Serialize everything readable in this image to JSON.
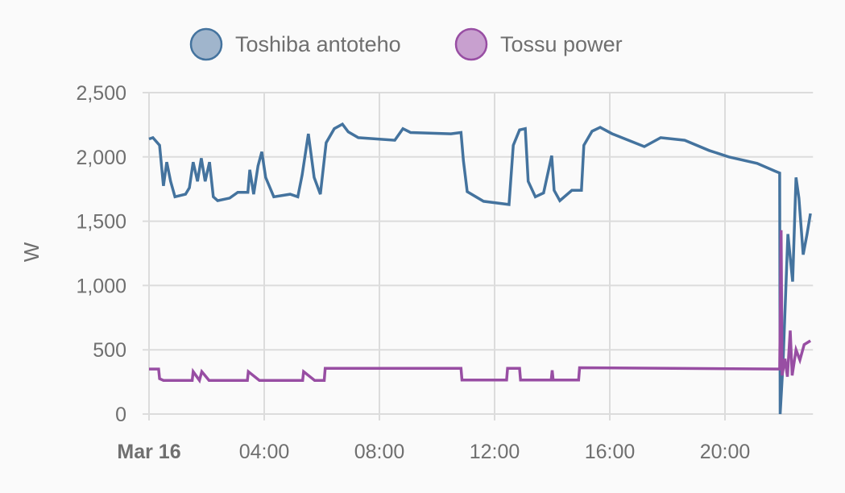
{
  "chart_data": {
    "type": "line",
    "title": "",
    "xlabel": "",
    "ylabel": "W",
    "ylim": [
      0,
      2500
    ],
    "xlim": [
      "00:00",
      "23:00"
    ],
    "grid": true,
    "legend_position": "top",
    "y_ticks": [
      "0",
      "500",
      "1,000",
      "1,500",
      "2,000",
      "2,500"
    ],
    "y_tick_values": [
      0,
      500,
      1000,
      1500,
      2000,
      2500
    ],
    "x_ticks": [
      {
        "label": "Mar 16",
        "time": "00:00",
        "bold": true
      },
      {
        "label": "04:00",
        "time": "04:00"
      },
      {
        "label": "08:00",
        "time": "08:00"
      },
      {
        "label": "12:00",
        "time": "12:00"
      },
      {
        "label": "16:00",
        "time": "16:00"
      },
      {
        "label": "20:00",
        "time": "20:00"
      }
    ],
    "series": [
      {
        "name": "Toshiba antoteho",
        "color": "#44739e",
        "fill": "#a0b5cc",
        "points": [
          [
            "00:00",
            2140
          ],
          [
            "00:08",
            2150
          ],
          [
            "00:22",
            2090
          ],
          [
            "00:30",
            1775
          ],
          [
            "00:37",
            1960
          ],
          [
            "00:45",
            1810
          ],
          [
            "00:54",
            1690
          ],
          [
            "01:16",
            1710
          ],
          [
            "01:24",
            1760
          ],
          [
            "01:32",
            1960
          ],
          [
            "01:41",
            1810
          ],
          [
            "01:49",
            1990
          ],
          [
            "01:57",
            1810
          ],
          [
            "02:06",
            1960
          ],
          [
            "02:14",
            1690
          ],
          [
            "02:23",
            1660
          ],
          [
            "02:48",
            1680
          ],
          [
            "03:05",
            1725
          ],
          [
            "03:26",
            1725
          ],
          [
            "03:30",
            1900
          ],
          [
            "03:38",
            1710
          ],
          [
            "03:47",
            1930
          ],
          [
            "03:55",
            2040
          ],
          [
            "04:03",
            1840
          ],
          [
            "04:20",
            1690
          ],
          [
            "04:54",
            1710
          ],
          [
            "05:10",
            1690
          ],
          [
            "05:19",
            1860
          ],
          [
            "05:32",
            2180
          ],
          [
            "05:44",
            1840
          ],
          [
            "05:57",
            1710
          ],
          [
            "06:09",
            2110
          ],
          [
            "06:26",
            2220
          ],
          [
            "06:43",
            2255
          ],
          [
            "06:55",
            2195
          ],
          [
            "07:16",
            2150
          ],
          [
            "08:32",
            2130
          ],
          [
            "08:49",
            2220
          ],
          [
            "09:05",
            2190
          ],
          [
            "10:29",
            2180
          ],
          [
            "10:50",
            2190
          ],
          [
            "10:55",
            1970
          ],
          [
            "11:03",
            1730
          ],
          [
            "11:37",
            1655
          ],
          [
            "12:30",
            1630
          ],
          [
            "12:39",
            2090
          ],
          [
            "12:52",
            2210
          ],
          [
            "13:04",
            2220
          ],
          [
            "13:10",
            1810
          ],
          [
            "13:25",
            1690
          ],
          [
            "13:42",
            1720
          ],
          [
            "13:59",
            2010
          ],
          [
            "14:04",
            1740
          ],
          [
            "14:16",
            1660
          ],
          [
            "14:41",
            1740
          ],
          [
            "15:01",
            1740
          ],
          [
            "15:06",
            2090
          ],
          [
            "15:23",
            2200
          ],
          [
            "15:40",
            2230
          ],
          [
            "16:05",
            2180
          ],
          [
            "16:39",
            2130
          ],
          [
            "17:12",
            2080
          ],
          [
            "17:46",
            2150
          ],
          [
            "18:36",
            2130
          ],
          [
            "19:27",
            2050
          ],
          [
            "20:08",
            2000
          ],
          [
            "21:07",
            1950
          ],
          [
            "21:44",
            1890
          ],
          [
            "21:54",
            1875
          ],
          [
            "21:55",
            0
          ],
          [
            "22:01",
            400
          ],
          [
            "22:11",
            1400
          ],
          [
            "22:21",
            1030
          ],
          [
            "22:28",
            1840
          ],
          [
            "22:34",
            1680
          ],
          [
            "22:43",
            1240
          ],
          [
            "22:51",
            1400
          ],
          [
            "22:58",
            1560
          ]
        ]
      },
      {
        "name": "Tossu power",
        "color": "#984ea3",
        "fill": "#c8a0cf",
        "points": [
          [
            "00:00",
            350
          ],
          [
            "00:20",
            350
          ],
          [
            "00:22",
            275
          ],
          [
            "00:30",
            262
          ],
          [
            "01:30",
            262
          ],
          [
            "01:32",
            330
          ],
          [
            "01:45",
            262
          ],
          [
            "01:50",
            330
          ],
          [
            "02:05",
            262
          ],
          [
            "03:25",
            262
          ],
          [
            "03:27",
            330
          ],
          [
            "03:50",
            262
          ],
          [
            "05:20",
            262
          ],
          [
            "05:22",
            330
          ],
          [
            "05:45",
            262
          ],
          [
            "06:05",
            262
          ],
          [
            "06:07",
            355
          ],
          [
            "10:50",
            355
          ],
          [
            "10:52",
            265
          ],
          [
            "12:25",
            265
          ],
          [
            "12:27",
            355
          ],
          [
            "12:52",
            355
          ],
          [
            "12:54",
            265
          ],
          [
            "13:58",
            265
          ],
          [
            "14:00",
            340
          ],
          [
            "14:02",
            265
          ],
          [
            "14:55",
            265
          ],
          [
            "14:57",
            360
          ],
          [
            "21:54",
            350
          ],
          [
            "21:57",
            1430
          ],
          [
            "21:59",
            300
          ],
          [
            "22:05",
            430
          ],
          [
            "22:10",
            290
          ],
          [
            "22:16",
            650
          ],
          [
            "22:20",
            300
          ],
          [
            "22:28",
            500
          ],
          [
            "22:36",
            420
          ],
          [
            "22:45",
            540
          ],
          [
            "22:58",
            570
          ]
        ]
      }
    ]
  }
}
